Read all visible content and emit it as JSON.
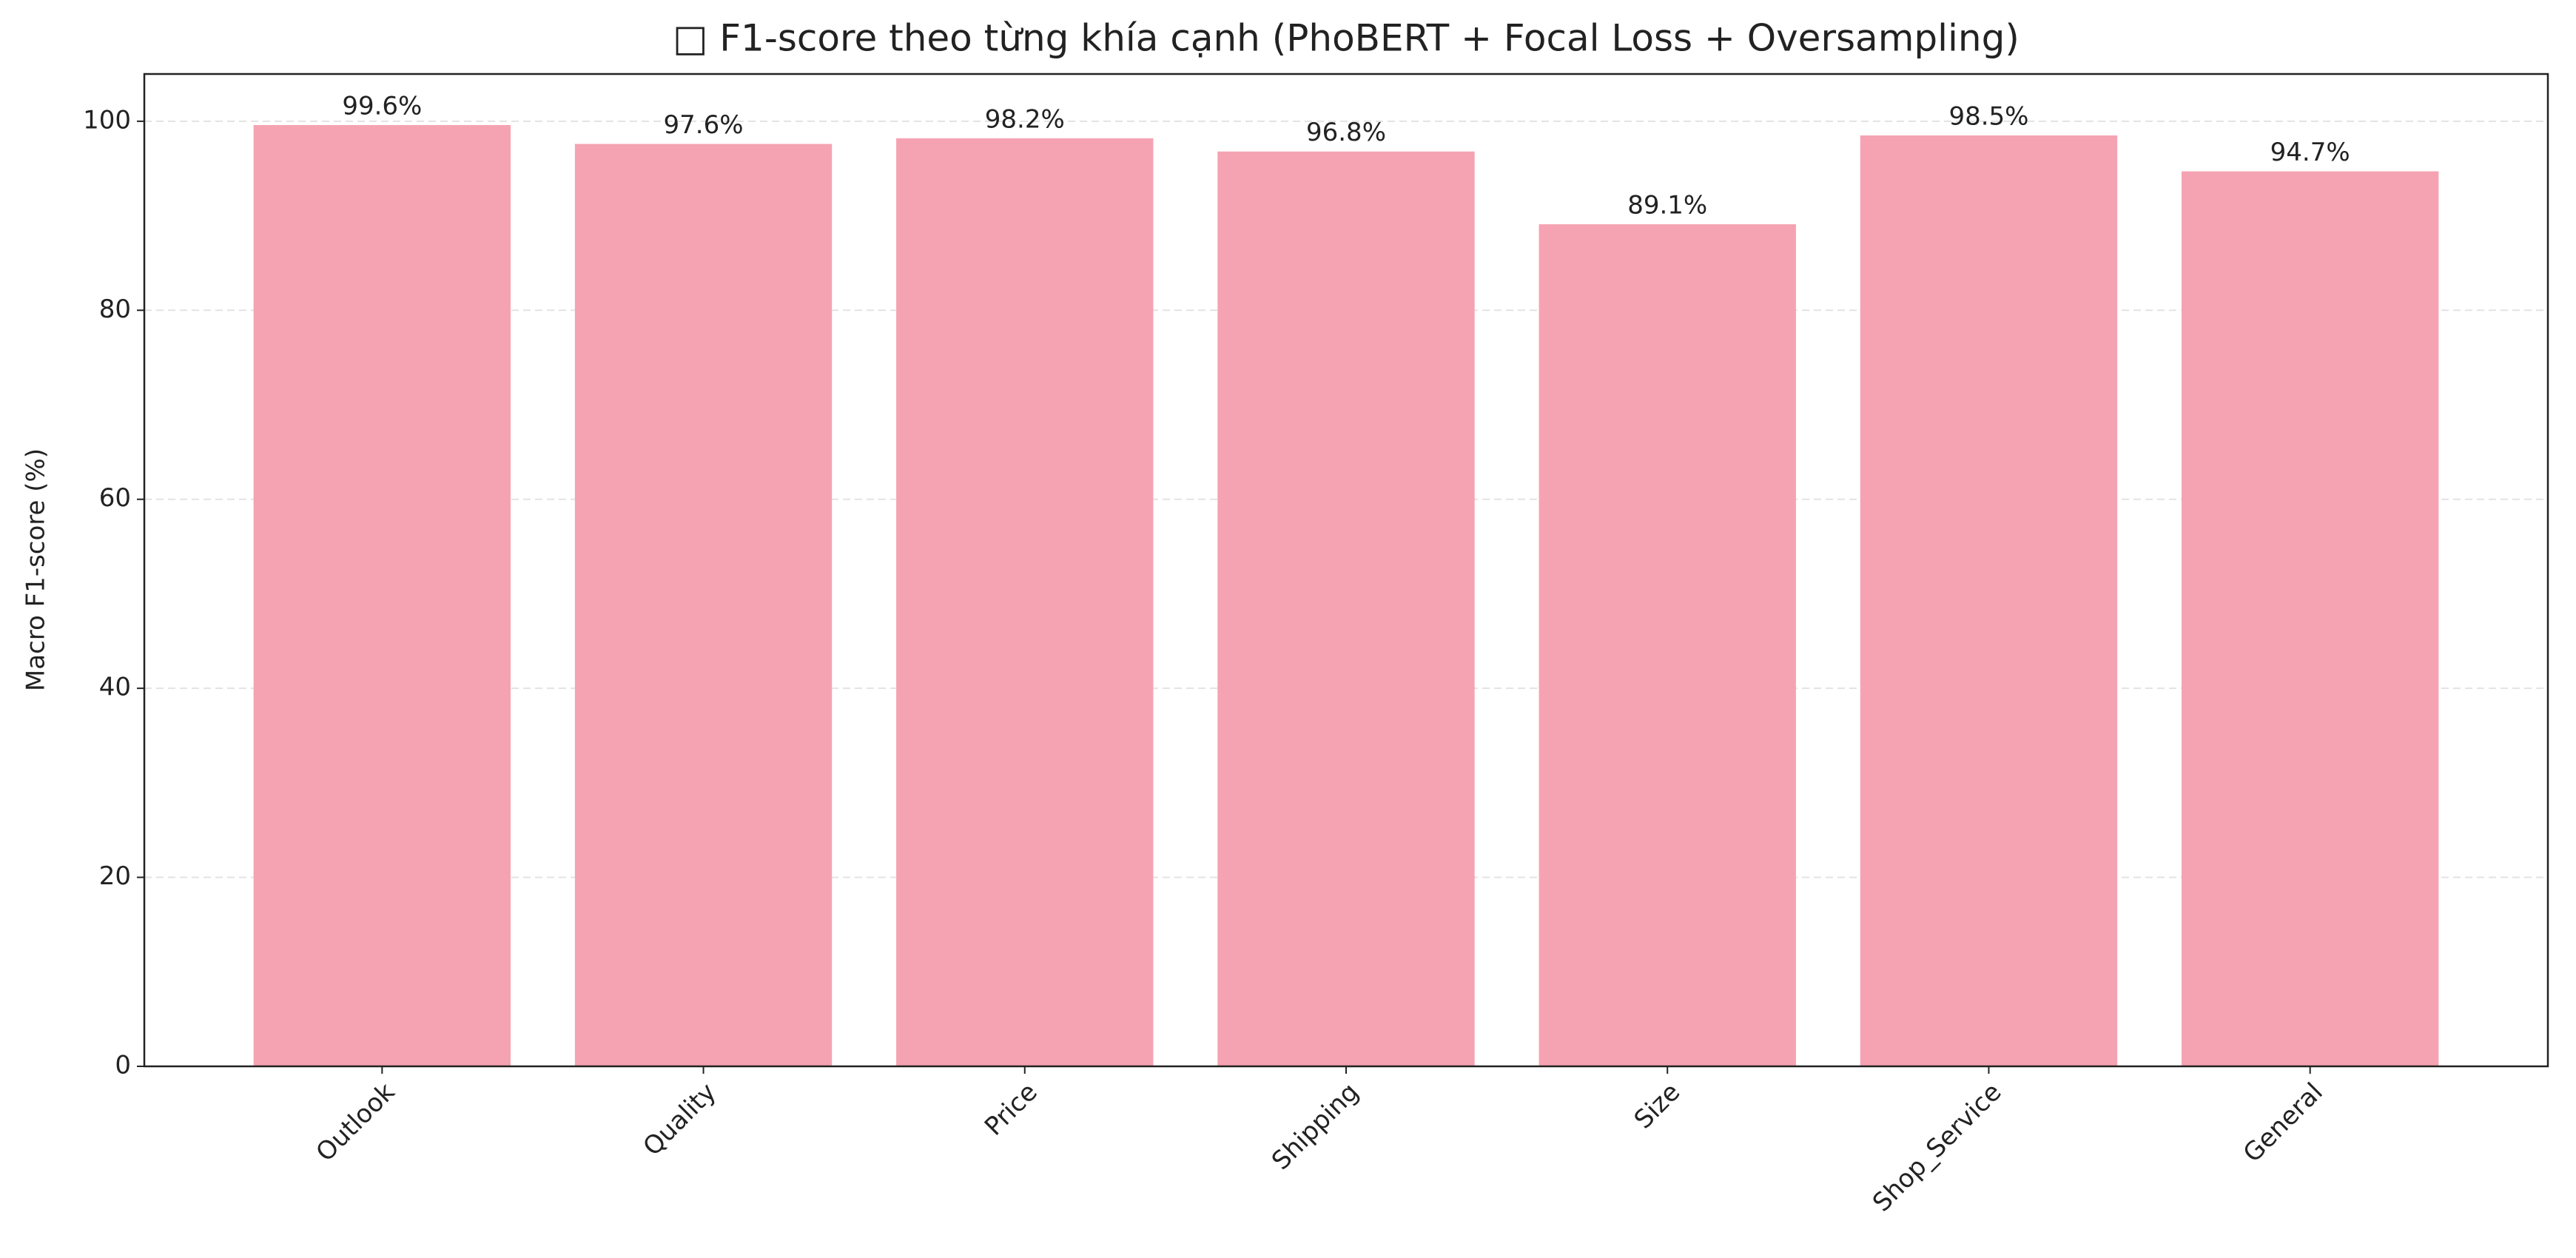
{
  "chart_data": {
    "type": "bar",
    "title": "□ F1-score theo từng khía cạnh (PhoBERT + Focal Loss + Oversampling)",
    "y_label": "Macro F1-score (%)",
    "categories": [
      "Outlook",
      "Quality",
      "Price",
      "Shipping",
      "Size",
      "Shop_Service",
      "General"
    ],
    "values": [
      99.6,
      97.6,
      98.2,
      96.8,
      89.1,
      98.5,
      94.7
    ],
    "value_labels": [
      "99.6%",
      "97.6%",
      "98.2%",
      "96.8%",
      "89.1%",
      "98.5%",
      "94.7%"
    ],
    "color": "#f5a3b2",
    "ylim": [
      0,
      105
    ],
    "yticks": [
      0,
      20,
      40,
      60,
      80,
      100
    ],
    "grid": true
  }
}
